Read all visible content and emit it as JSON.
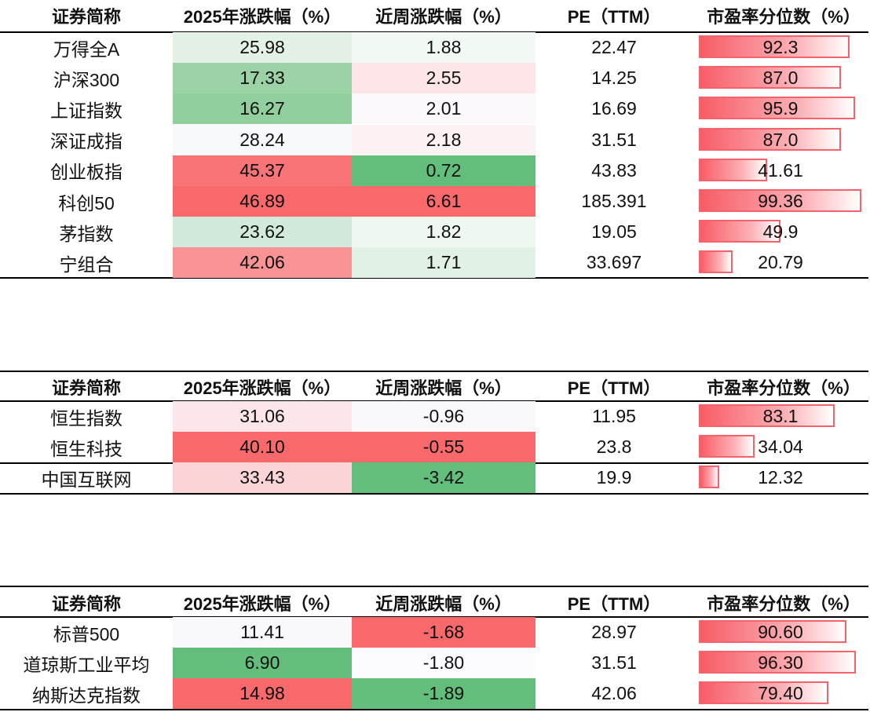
{
  "headers": [
    "证券简称",
    "2025年涨跌幅（%）",
    "近周涨跌幅（%）",
    "PE（TTM）",
    "市盈率分位数（%）"
  ],
  "tables": [
    {
      "rows": [
        {
          "name": "万得全A",
          "ytd": "25.98",
          "wk": "1.88",
          "pe": "22.47",
          "pct": "92.3",
          "pct_value": 92.3,
          "ytd_color": "#e3f1e6",
          "wk_color": "#f3f9f5"
        },
        {
          "name": "沪深300",
          "ytd": "17.33",
          "wk": "2.55",
          "pe": "14.25",
          "pct": "87.0",
          "pct_value": 87.0,
          "ytd_color": "#9bd3a6",
          "wk_color": "#fde5e8"
        },
        {
          "name": "上证指数",
          "ytd": "16.27",
          "wk": "2.01",
          "pe": "16.69",
          "pct": "95.9",
          "pct_value": 95.9,
          "ytd_color": "#91cf9e",
          "wk_color": "#fbf9fb"
        },
        {
          "name": "深证成指",
          "ytd": "28.24",
          "wk": "2.18",
          "pe": "31.51",
          "pct": "87.0",
          "pct_value": 87.0,
          "ytd_color": "#f6fafa",
          "wk_color": "#fcf1f3"
        },
        {
          "name": "创业板指",
          "ytd": "45.37",
          "wk": "0.72",
          "pe": "43.83",
          "pct": "41.61",
          "pct_value": 41.61,
          "ytd_color": "#f87477",
          "wk_color": "#63be7b"
        },
        {
          "name": "科创50",
          "ytd": "46.89",
          "wk": "6.61",
          "pe": "185.391",
          "pct": "99.36",
          "pct_value": 99.36,
          "ytd_color": "#f8696b",
          "wk_color": "#f8696b"
        },
        {
          "name": "茅指数",
          "ytd": "23.62",
          "wk": "1.82",
          "pe": "19.05",
          "pct": "49.9",
          "pct_value": 49.9,
          "ytd_color": "#d2eadb",
          "wk_color": "#eff7f1"
        },
        {
          "name": "宁组合",
          "ytd": "42.06",
          "wk": "1.71",
          "pe": "33.697",
          "pct": "20.79",
          "pct_value": 20.79,
          "ytd_color": "#f99396",
          "wk_color": "#e2f1e6"
        }
      ]
    },
    {
      "rows": [
        {
          "name": "恒生指数",
          "ytd": "31.06",
          "wk": "-0.96",
          "pe": "11.95",
          "pct": "83.1",
          "pct_value": 83.1,
          "ytd_color": "#fde6e9",
          "wk_color": "#f9f9fc"
        },
        {
          "name": "恒生科技",
          "ytd": "40.10",
          "wk": "-0.55",
          "pe": "23.8",
          "pct": "34.04",
          "pct_value": 34.04,
          "ytd_color": "#f8696b",
          "wk_color": "#f8696b"
        },
        {
          "name": "中国互联网",
          "ytd": "33.43",
          "wk": "-3.42",
          "pe": "19.9",
          "pct": "12.32",
          "pct_value": 12.32,
          "ytd_color": "#fbd4d8",
          "wk_color": "#63be7b"
        }
      ]
    },
    {
      "rows": [
        {
          "name": "标普500",
          "ytd": "11.41",
          "wk": "-1.68",
          "pe": "28.97",
          "pct": "90.60",
          "pct_value": 90.6,
          "ytd_color": "#f9f9fc",
          "wk_color": "#f8696b"
        },
        {
          "name": "道琼斯工业平均",
          "ytd": "6.90",
          "wk": "-1.80",
          "pe": "31.51",
          "pct": "96.30",
          "pct_value": 96.3,
          "ytd_color": "#63be7b",
          "wk_color": "#fcfcfe"
        },
        {
          "name": "纳斯达克指数",
          "ytd": "14.98",
          "wk": "-1.89",
          "pe": "42.06",
          "pct": "79.40",
          "pct_value": 79.4,
          "ytd_color": "#f8696b",
          "wk_color": "#63be7b"
        }
      ]
    }
  ]
}
